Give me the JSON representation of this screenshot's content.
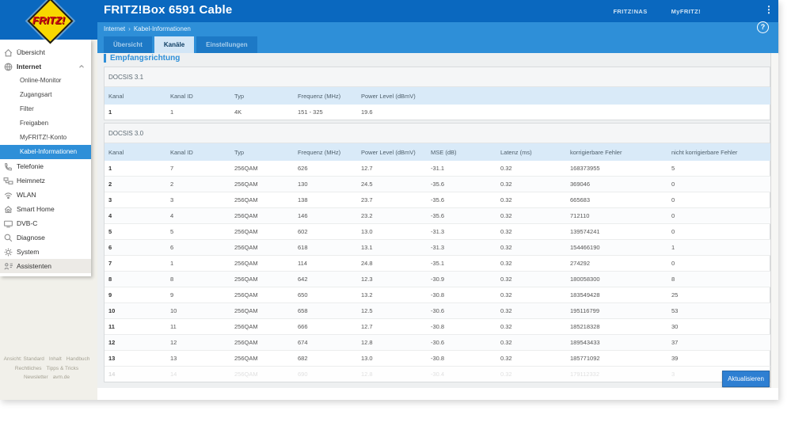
{
  "header": {
    "title": "FRITZ!Box 6591 Cable",
    "nav_links": [
      "FRITZ!NAS",
      "MyFRITZ!"
    ],
    "menu_glyph": "⋮",
    "breadcrumb": {
      "items": [
        "Internet",
        "Kabel-Informationen"
      ],
      "separator": "›"
    },
    "help_label": "?",
    "tabs": [
      {
        "label": "Übersicht",
        "active": false
      },
      {
        "label": "Kanäle",
        "active": true
      },
      {
        "label": "Einstellungen",
        "active": false
      }
    ]
  },
  "logo": {
    "text": "FRITZ!"
  },
  "sidebar": {
    "items": [
      {
        "label": "Übersicht",
        "icon": "home-icon",
        "type": "top"
      },
      {
        "label": "Internet",
        "icon": "globe-icon",
        "type": "top",
        "bold": true,
        "expanded": true
      },
      {
        "label": "Online-Monitor",
        "type": "sub"
      },
      {
        "label": "Zugangsart",
        "type": "sub"
      },
      {
        "label": "Filter",
        "type": "sub"
      },
      {
        "label": "Freigaben",
        "type": "sub"
      },
      {
        "label": "MyFRITZ!-Konto",
        "type": "sub"
      },
      {
        "label": "Kabel-Informationen",
        "type": "sub",
        "active": true
      },
      {
        "label": "Telefonie",
        "icon": "phone-icon",
        "type": "top"
      },
      {
        "label": "Heimnetz",
        "icon": "network-icon",
        "type": "top"
      },
      {
        "label": "WLAN",
        "icon": "wifi-icon",
        "type": "top"
      },
      {
        "label": "Smart Home",
        "icon": "smart-home-icon",
        "type": "top"
      },
      {
        "label": "DVB-C",
        "icon": "tv-icon",
        "type": "top"
      },
      {
        "label": "Diagnose",
        "icon": "diagnose-icon",
        "type": "top"
      },
      {
        "label": "System",
        "icon": "system-icon",
        "type": "top"
      },
      {
        "label": "Assistenten",
        "icon": "assistant-icon",
        "type": "top",
        "highlight": true
      }
    ],
    "footer_rows": [
      [
        "Ansicht: Standard",
        "Inhalt",
        "Handbuch"
      ],
      [
        "Rechtliches",
        "Tipps & Tricks"
      ],
      [
        "Newsletter",
        "avm.de"
      ]
    ]
  },
  "main": {
    "heading": "Empfangsrichtung",
    "sections": [
      {
        "title": "DOCSIS 3.1",
        "columns": [
          "Kanal",
          "Kanal ID",
          "Typ",
          "Frequenz (MHz)",
          "Power Level (dBmV)"
        ],
        "rows": [
          [
            "1",
            "1",
            "4K",
            "151 - 325",
            "19.6"
          ]
        ]
      },
      {
        "title": "DOCSIS 3.0",
        "columns": [
          "Kanal",
          "Kanal ID",
          "Typ",
          "Frequenz (MHz)",
          "Power Level (dBmV)",
          "MSE (dB)",
          "Latenz (ms)",
          "korrigierbare Fehler",
          "nicht korrigierbare Fehler"
        ],
        "rows": [
          [
            "1",
            "7",
            "256QAM",
            "626",
            "12.7",
            "-31.1",
            "0.32",
            "168373955",
            "5"
          ],
          [
            "2",
            "2",
            "256QAM",
            "130",
            "24.5",
            "-35.6",
            "0.32",
            "369046",
            "0"
          ],
          [
            "3",
            "3",
            "256QAM",
            "138",
            "23.7",
            "-35.6",
            "0.32",
            "665683",
            "0"
          ],
          [
            "4",
            "4",
            "256QAM",
            "146",
            "23.2",
            "-35.6",
            "0.32",
            "712110",
            "0"
          ],
          [
            "5",
            "5",
            "256QAM",
            "602",
            "13.0",
            "-31.3",
            "0.32",
            "139574241",
            "0"
          ],
          [
            "6",
            "6",
            "256QAM",
            "618",
            "13.1",
            "-31.3",
            "0.32",
            "154466190",
            "1"
          ],
          [
            "7",
            "1",
            "256QAM",
            "114",
            "24.8",
            "-35.1",
            "0.32",
            "274292",
            "0"
          ],
          [
            "8",
            "8",
            "256QAM",
            "642",
            "12.3",
            "-30.9",
            "0.32",
            "180058300",
            "8"
          ],
          [
            "9",
            "9",
            "256QAM",
            "650",
            "13.2",
            "-30.8",
            "0.32",
            "183549428",
            "25"
          ],
          [
            "10",
            "10",
            "256QAM",
            "658",
            "12.5",
            "-30.6",
            "0.32",
            "195116799",
            "53"
          ],
          [
            "11",
            "11",
            "256QAM",
            "666",
            "12.7",
            "-30.8",
            "0.32",
            "185218328",
            "30"
          ],
          [
            "12",
            "12",
            "256QAM",
            "674",
            "12.8",
            "-30.6",
            "0.32",
            "189543433",
            "37"
          ],
          [
            "13",
            "13",
            "256QAM",
            "682",
            "13.0",
            "-30.8",
            "0.32",
            "185771092",
            "39"
          ]
        ],
        "faded_row": [
          "14",
          "14",
          "256QAM",
          "690",
          "12.8",
          "-30.4",
          "0.32",
          "179112332",
          "3"
        ]
      }
    ],
    "refresh_button": "Aktualisieren"
  },
  "colors": {
    "topbar": "#0a68bf",
    "band": "#2e8fd8",
    "accent": "#2e8fd8",
    "tab_active_bg": "#d3e6f6",
    "table_header_bg": "#d9eaf8",
    "content_bg": "#eef0f1",
    "button": "#2e7fd2",
    "logo_yellow": "#f8d800",
    "logo_red": "#d21313"
  }
}
